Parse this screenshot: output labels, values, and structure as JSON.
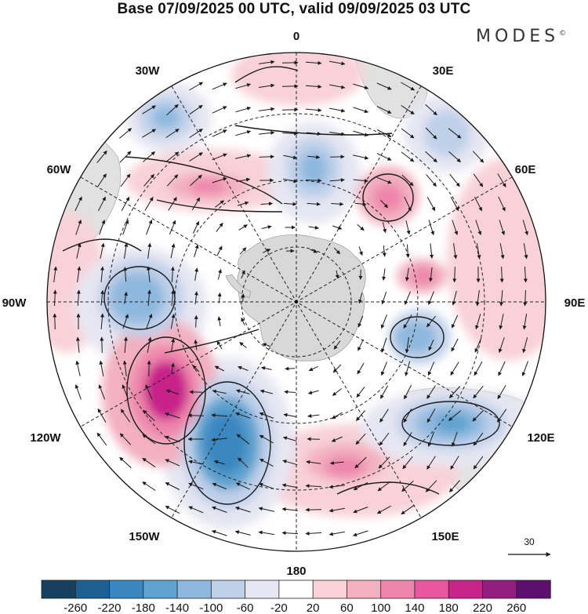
{
  "title": "Base 07/09/2025 00 UTC, valid 09/09/2025 03 UTC",
  "brand": "MODES",
  "brand_mark": "©",
  "longitude_labels": {
    "n": "0",
    "ne30": "30E",
    "e60": "60E",
    "e90": "90E",
    "e120": "120E",
    "e150": "150E",
    "s": "180",
    "w150": "150W",
    "w120": "120W",
    "w90": "90W",
    "w60": "60W",
    "w30": "30W"
  },
  "reference_vector": {
    "label": "30"
  },
  "colorbar": {
    "ticks": [
      "-260",
      "-220",
      "-180",
      "-140",
      "-100",
      "-60",
      "-20",
      "20",
      "60",
      "100",
      "140",
      "180",
      "220",
      "260"
    ],
    "colors": [
      "#17405e",
      "#1c5f91",
      "#3a87bf",
      "#5ea2cf",
      "#8eb8de",
      "#bfd0e9",
      "#e6e6f2",
      "#ffffff",
      "#f8d2d8",
      "#f2b0c0",
      "#ee86ac",
      "#e8569e",
      "#c7248a",
      "#921f80",
      "#5d0f6d"
    ]
  },
  "palette": {
    "land": "#d7d7d7",
    "grid": "#222222",
    "wind_arrow": "#1a1a1a"
  }
}
